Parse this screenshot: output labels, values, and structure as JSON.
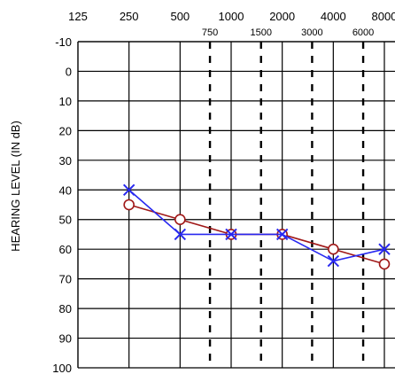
{
  "chart_data": {
    "type": "line",
    "title": "",
    "xlabel": "",
    "ylabel": "HEARING LEVEL (IN dB)",
    "x_ticks_major": [
      125,
      250,
      500,
      1000,
      2000,
      4000,
      8000
    ],
    "x_ticks_minor": [
      750,
      1500,
      3000,
      6000
    ],
    "y_ticks": [
      -10,
      0,
      10,
      20,
      30,
      40,
      50,
      60,
      70,
      80,
      90,
      100
    ],
    "ylim": [
      -10,
      100
    ],
    "y_inverted": true,
    "x_scale": "octave",
    "grid": true,
    "series": [
      {
        "marker": "circle",
        "color": "#a01818",
        "x": [
          250,
          500,
          1000,
          2000,
          4000,
          8000
        ],
        "y": [
          45,
          50,
          55,
          55,
          60,
          65
        ]
      },
      {
        "marker": "x",
        "color": "#2828f0",
        "x": [
          250,
          500,
          1000,
          2000,
          4000,
          8000
        ],
        "y": [
          40,
          55,
          55,
          55,
          64,
          60
        ]
      }
    ]
  }
}
